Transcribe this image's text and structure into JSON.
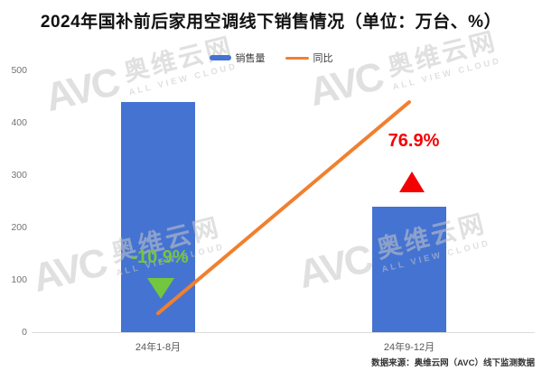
{
  "header": {
    "title": "2024年国补前后家用空调线下销售情况（单位：万台、%）"
  },
  "legend": [
    {
      "label": "销售量",
      "color": "#4573D2",
      "type": "bar"
    },
    {
      "label": "同比",
      "color": "#F0802F",
      "type": "line"
    }
  ],
  "watermark": {
    "logo": "AVC",
    "cn": "奥维云网",
    "en": "ALL VIEW CLOUD"
  },
  "footer": {
    "source": "数据来源：奥维云网（AVC）线下监测数据"
  },
  "chart_data": {
    "type": "bar",
    "title": "2024年国补前后家用空调线下销售情况（单位：万台、%）",
    "categories": [
      "24年1-8月",
      "24年9-12月"
    ],
    "series": [
      {
        "name": "销售量",
        "type": "bar",
        "unit": "万台",
        "values": [
          440,
          240
        ],
        "color": "#4573D2"
      },
      {
        "name": "同比",
        "type": "line",
        "unit": "%",
        "values": [
          -10.9,
          76.9
        ],
        "color": "#F0802F"
      }
    ],
    "annotations": [
      {
        "text": "-10.9%",
        "direction": "down",
        "color": "#74C63E"
      },
      {
        "text": "76.9%",
        "direction": "up",
        "color": "#F40000"
      }
    ],
    "xlabel": "",
    "ylabel": "",
    "ylim": [
      0,
      500
    ],
    "yticks": [
      0,
      100,
      200,
      300,
      400,
      500
    ],
    "grid": false,
    "legend_position": "top"
  }
}
